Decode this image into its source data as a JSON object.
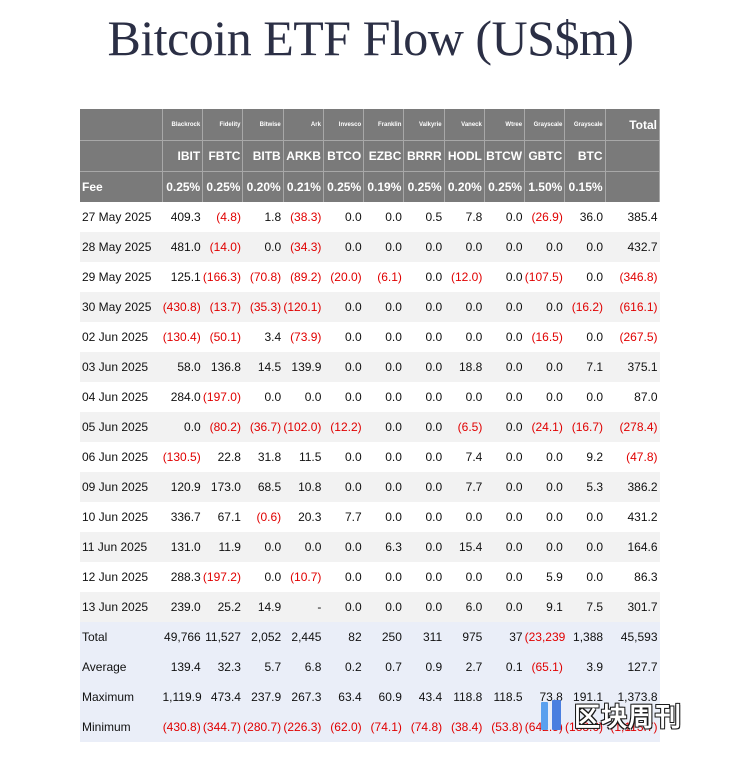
{
  "title": "Bitcoin ETF Flow (US$m)",
  "issuers": [
    "Blackrock",
    "Fidelity",
    "Bitwise",
    "Ark",
    "Invesco",
    "Franklin",
    "Valkyrie",
    "Vaneck",
    "Wtree",
    "Grayscale",
    "Grayscale"
  ],
  "tickers": [
    "IBIT",
    "FBTC",
    "BITB",
    "ARKB",
    "BTCO",
    "EZBC",
    "BRRR",
    "HODL",
    "BTCW",
    "GBTC",
    "BTC"
  ],
  "total_header": "Total",
  "fee_label": "Fee",
  "fees": [
    "0.25%",
    "0.25%",
    "0.20%",
    "0.21%",
    "0.25%",
    "0.19%",
    "0.25%",
    "0.20%",
    "0.25%",
    "1.50%",
    "0.15%"
  ],
  "rows": [
    {
      "date": "27 May 2025",
      "values": [
        "409.3",
        "(4.8)",
        "1.8",
        "(38.3)",
        "0.0",
        "0.0",
        "0.5",
        "7.8",
        "0.0",
        "(26.9)",
        "36.0"
      ],
      "total": "385.4"
    },
    {
      "date": "28 May 2025",
      "values": [
        "481.0",
        "(14.0)",
        "0.0",
        "(34.3)",
        "0.0",
        "0.0",
        "0.0",
        "0.0",
        "0.0",
        "0.0",
        "0.0"
      ],
      "total": "432.7"
    },
    {
      "date": "29 May 2025",
      "values": [
        "125.1",
        "(166.3)",
        "(70.8)",
        "(89.2)",
        "(20.0)",
        "(6.1)",
        "0.0",
        "(12.0)",
        "0.0",
        "(107.5)",
        "0.0"
      ],
      "total": "(346.8)"
    },
    {
      "date": "30 May 2025",
      "values": [
        "(430.8)",
        "(13.7)",
        "(35.3)",
        "(120.1)",
        "0.0",
        "0.0",
        "0.0",
        "0.0",
        "0.0",
        "0.0",
        "(16.2)"
      ],
      "total": "(616.1)"
    },
    {
      "date": "02 Jun 2025",
      "values": [
        "(130.4)",
        "(50.1)",
        "3.4",
        "(73.9)",
        "0.0",
        "0.0",
        "0.0",
        "0.0",
        "0.0",
        "(16.5)",
        "0.0"
      ],
      "total": "(267.5)"
    },
    {
      "date": "03 Jun 2025",
      "values": [
        "58.0",
        "136.8",
        "14.5",
        "139.9",
        "0.0",
        "0.0",
        "0.0",
        "18.8",
        "0.0",
        "0.0",
        "7.1"
      ],
      "total": "375.1"
    },
    {
      "date": "04 Jun 2025",
      "values": [
        "284.0",
        "(197.0)",
        "0.0",
        "0.0",
        "0.0",
        "0.0",
        "0.0",
        "0.0",
        "0.0",
        "0.0",
        "0.0"
      ],
      "total": "87.0"
    },
    {
      "date": "05 Jun 2025",
      "values": [
        "0.0",
        "(80.2)",
        "(36.7)",
        "(102.0)",
        "(12.2)",
        "0.0",
        "0.0",
        "(6.5)",
        "0.0",
        "(24.1)",
        "(16.7)"
      ],
      "total": "(278.4)"
    },
    {
      "date": "06 Jun 2025",
      "values": [
        "(130.5)",
        "22.8",
        "31.8",
        "11.5",
        "0.0",
        "0.0",
        "0.0",
        "7.4",
        "0.0",
        "0.0",
        "9.2"
      ],
      "total": "(47.8)"
    },
    {
      "date": "09 Jun 2025",
      "values": [
        "120.9",
        "173.0",
        "68.5",
        "10.8",
        "0.0",
        "0.0",
        "0.0",
        "7.7",
        "0.0",
        "0.0",
        "5.3"
      ],
      "total": "386.2"
    },
    {
      "date": "10 Jun 2025",
      "values": [
        "336.7",
        "67.1",
        "(0.6)",
        "20.3",
        "7.7",
        "0.0",
        "0.0",
        "0.0",
        "0.0",
        "0.0",
        "0.0"
      ],
      "total": "431.2"
    },
    {
      "date": "11 Jun 2025",
      "values": [
        "131.0",
        "11.9",
        "0.0",
        "0.0",
        "0.0",
        "6.3",
        "0.0",
        "15.4",
        "0.0",
        "0.0",
        "0.0"
      ],
      "total": "164.6"
    },
    {
      "date": "12 Jun 2025",
      "values": [
        "288.3",
        "(197.2)",
        "0.0",
        "(10.7)",
        "0.0",
        "0.0",
        "0.0",
        "0.0",
        "0.0",
        "5.9",
        "0.0"
      ],
      "total": "86.3"
    },
    {
      "date": "13 Jun 2025",
      "values": [
        "239.0",
        "25.2",
        "14.9",
        "-",
        "0.0",
        "0.0",
        "0.0",
        "6.0",
        "0.0",
        "9.1",
        "7.5"
      ],
      "total": "301.7"
    }
  ],
  "summary": [
    {
      "label": "Total",
      "values": [
        "49,766",
        "11,527",
        "2,052",
        "2,445",
        "82",
        "250",
        "311",
        "975",
        "37",
        "(23,239)",
        "1,388"
      ],
      "total": "45,593"
    },
    {
      "label": "Average",
      "values": [
        "139.4",
        "32.3",
        "5.7",
        "6.8",
        "0.2",
        "0.7",
        "0.9",
        "2.7",
        "0.1",
        "(65.1)",
        "3.9"
      ],
      "total": "127.7"
    },
    {
      "label": "Maximum",
      "values": [
        "1,119.9",
        "473.4",
        "237.9",
        "267.3",
        "63.4",
        "60.9",
        "43.4",
        "118.8",
        "118.5",
        "73.8",
        "191.1"
      ],
      "total": "1,373.8"
    },
    {
      "label": "Minimum",
      "values": [
        "(430.8)",
        "(344.7)",
        "(280.7)",
        "(226.3)",
        "(62.0)",
        "(74.1)",
        "(74.8)",
        "(38.4)",
        "(53.8)",
        "(642.5)",
        "(188.6)"
      ],
      "total": "(1,113.7)"
    }
  ],
  "watermark": "区块周刊",
  "colors": {
    "header_bg": "#7a7a7a",
    "negative": "#e00000",
    "summary_bg": "#eaeef8",
    "title": "#2b2f45"
  }
}
